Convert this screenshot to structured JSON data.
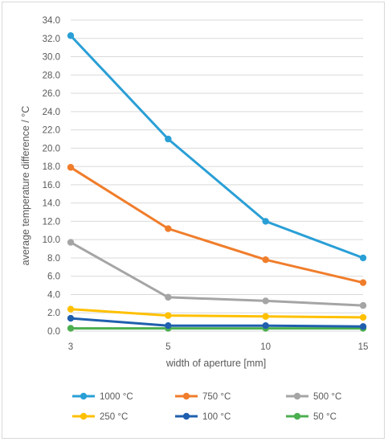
{
  "chart_data": {
    "type": "line",
    "title": "",
    "xlabel": "width of aperture [mm]",
    "ylabel": "average temperature difference / °C",
    "categories": [
      "3",
      "5",
      "10",
      "15"
    ],
    "ylim": [
      0,
      34
    ],
    "yticks": [
      "0.0",
      "2.0",
      "4.0",
      "6.0",
      "8.0",
      "10.0",
      "12.0",
      "14.0",
      "16.0",
      "18.0",
      "20.0",
      "22.0",
      "24.0",
      "26.0",
      "28.0",
      "30.0",
      "32.0",
      "34.0"
    ],
    "grid": "horizontal",
    "legend_position": "bottom",
    "series": [
      {
        "name": "1000 °C",
        "color": "#2a9fd6",
        "values": [
          32.3,
          21.0,
          12.0,
          8.0
        ]
      },
      {
        "name": "750 °C",
        "color": "#f07d2b",
        "values": [
          17.9,
          11.2,
          7.8,
          5.3
        ]
      },
      {
        "name": "500 °C",
        "color": "#a5a5a5",
        "values": [
          9.7,
          3.7,
          3.3,
          2.8
        ]
      },
      {
        "name": "250 °C",
        "color": "#ffc000",
        "values": [
          2.4,
          1.7,
          1.6,
          1.5
        ]
      },
      {
        "name": "100 °C",
        "color": "#1f5fae",
        "values": [
          1.4,
          0.6,
          0.6,
          0.5
        ]
      },
      {
        "name": "50 °C",
        "color": "#4caf50",
        "values": [
          0.3,
          0.3,
          0.3,
          0.3
        ]
      }
    ]
  }
}
